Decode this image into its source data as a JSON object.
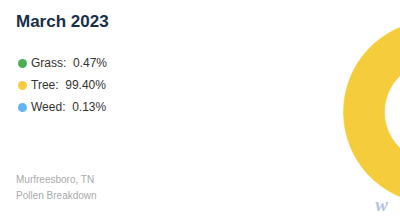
{
  "chart_data": {
    "type": "pie",
    "title": "March 2023",
    "subtitle": "Murfreesboro, TN\nPollen Breakdown",
    "categories": [
      "Tree:  99.40%",
      "Grass:  0.47%",
      "Weed:  0.13%"
    ],
    "values": [
      99.4,
      0.47,
      0.13
    ],
    "colors": [
      "#f5cc3b",
      "#4caf50",
      "#64b5f6"
    ],
    "legend": "left",
    "annotations": [
      "w"
    ]
  }
}
